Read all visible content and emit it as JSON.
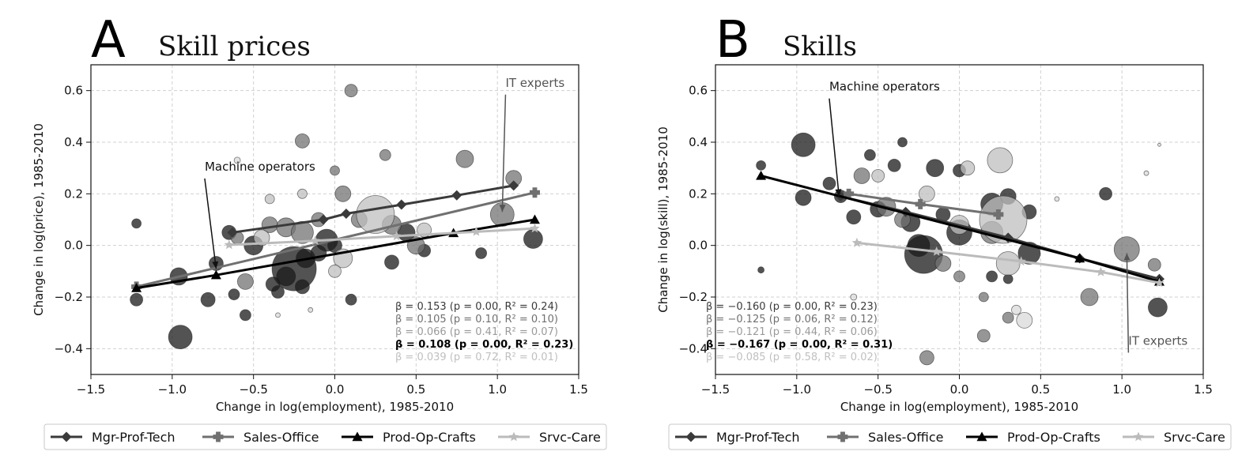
{
  "chart_data": [
    {
      "type": "scatter",
      "panel_letter": "A",
      "title": "Skill prices",
      "xlabel": "Change in log(employment), 1985-2010",
      "ylabel": "Change in log(price), 1985-2010",
      "xlim": [
        -1.5,
        1.5
      ],
      "ylim": [
        -0.5,
        0.7
      ],
      "xticks": [
        -1.5,
        -1.0,
        -0.5,
        0.0,
        0.5,
        1.0,
        1.5
      ],
      "xtick_labels": [
        "−1.5",
        "−1.0",
        "−0.5",
        "0.0",
        "0.5",
        "1.0",
        "1.5"
      ],
      "yticks": [
        -0.4,
        -0.2,
        0.0,
        0.2,
        0.4,
        0.6
      ],
      "ytick_labels": [
        "−0.4",
        "−0.2",
        "0.0",
        "0.2",
        "0.4",
        "0.6"
      ],
      "grid": true,
      "annotations": [
        {
          "text": "IT experts",
          "color": "#555555",
          "text_x": 1.05,
          "text_y": 0.615,
          "arrow_to": [
            1.03,
            0.13
          ]
        },
        {
          "text": "Machine operators",
          "color": "#111111",
          "text_x": -0.8,
          "text_y": 0.29,
          "arrow_to": [
            -0.73,
            -0.09
          ]
        }
      ],
      "series": [
        {
          "name": "Mgr-Prof-Tech",
          "color": "#3a3a3a",
          "marker": "diamond",
          "x": [
            -0.63,
            -0.07,
            0.07,
            0.41,
            0.75,
            1.1
          ],
          "y": [
            0.05,
            0.1,
            0.123,
            0.158,
            0.194,
            0.232
          ]
        },
        {
          "name": "Sales-Office",
          "color": "#707070",
          "marker": "plus",
          "x": [
            -1.22,
            1.23
          ],
          "y": [
            -0.16,
            0.205
          ]
        },
        {
          "name": "Prod-Op-Crafts",
          "color": "#000000",
          "marker": "triangle",
          "x": [
            -1.22,
            -0.73,
            0.73,
            1.23
          ],
          "y": [
            -0.165,
            -0.115,
            0.048,
            0.1
          ]
        },
        {
          "name": "Srvc-Care",
          "color": "#bbbbbb",
          "marker": "star",
          "x": [
            -0.65,
            -0.12,
            0.38,
            0.87,
            1.23
          ],
          "y": [
            0.002,
            0.018,
            0.036,
            0.053,
            0.066
          ]
        }
      ],
      "points": [
        {
          "x": -1.22,
          "y": 0.085,
          "s": 6,
          "c": 0.1
        },
        {
          "x": -1.22,
          "y": -0.21,
          "s": 8,
          "c": 0.1
        },
        {
          "x": -0.96,
          "y": -0.12,
          "s": 11,
          "c": 0.1
        },
        {
          "x": -0.95,
          "y": -0.355,
          "s": 15,
          "c": 0.1
        },
        {
          "x": -0.78,
          "y": -0.21,
          "s": 9,
          "c": 0.1
        },
        {
          "x": -0.73,
          "y": -0.07,
          "s": 9,
          "c": 0.1
        },
        {
          "x": -0.65,
          "y": 0.05,
          "s": 9,
          "c": 0.1
        },
        {
          "x": -0.62,
          "y": -0.19,
          "s": 7,
          "c": 0.1
        },
        {
          "x": -0.55,
          "y": -0.27,
          "s": 7,
          "c": 0.1
        },
        {
          "x": -0.5,
          "y": 0.0,
          "s": 12,
          "c": 0.1
        },
        {
          "x": -0.38,
          "y": -0.15,
          "s": 9,
          "c": 0.1
        },
        {
          "x": -0.35,
          "y": -0.18,
          "s": 8,
          "c": 0.1
        },
        {
          "x": -0.3,
          "y": -0.12,
          "s": 12,
          "c": 0.1
        },
        {
          "x": -0.25,
          "y": -0.09,
          "s": 28,
          "c": 0.1
        },
        {
          "x": -0.2,
          "y": -0.16,
          "s": 9,
          "c": 0.1
        },
        {
          "x": -0.18,
          "y": -0.05,
          "s": 12,
          "c": 0.1
        },
        {
          "x": -0.1,
          "y": -0.03,
          "s": 10,
          "c": 0.1
        },
        {
          "x": -0.05,
          "y": 0.02,
          "s": 14,
          "c": 0.1
        },
        {
          "x": 0.0,
          "y": 0.0,
          "s": 9,
          "c": 0.1
        },
        {
          "x": 0.1,
          "y": -0.21,
          "s": 7,
          "c": 0.1
        },
        {
          "x": 0.35,
          "y": -0.065,
          "s": 9,
          "c": 0.1
        },
        {
          "x": 0.44,
          "y": 0.05,
          "s": 11,
          "c": 0.1
        },
        {
          "x": 0.55,
          "y": -0.02,
          "s": 8,
          "c": 0.1
        },
        {
          "x": 0.9,
          "y": -0.03,
          "s": 7,
          "c": 0.1
        },
        {
          "x": 1.22,
          "y": 0.025,
          "s": 12,
          "c": 0.1
        },
        {
          "x": -0.6,
          "y": 0.03,
          "s": 8,
          "c": 0.45
        },
        {
          "x": -0.4,
          "y": 0.08,
          "s": 10,
          "c": 0.45
        },
        {
          "x": -0.3,
          "y": 0.07,
          "s": 12,
          "c": 0.45
        },
        {
          "x": -0.2,
          "y": 0.05,
          "s": 14,
          "c": 0.45
        },
        {
          "x": 0.05,
          "y": 0.2,
          "s": 10,
          "c": 0.45
        },
        {
          "x": 0.1,
          "y": 0.6,
          "s": 8,
          "c": 0.45
        },
        {
          "x": -0.2,
          "y": 0.405,
          "s": 9,
          "c": 0.45
        },
        {
          "x": 0.8,
          "y": 0.335,
          "s": 11,
          "c": 0.45
        },
        {
          "x": 1.1,
          "y": 0.26,
          "s": 10,
          "c": 0.45
        },
        {
          "x": 1.03,
          "y": 0.12,
          "s": 15,
          "c": 0.45
        },
        {
          "x": 0.31,
          "y": 0.35,
          "s": 7,
          "c": 0.45
        },
        {
          "x": -0.55,
          "y": -0.14,
          "s": 10,
          "c": 0.45
        },
        {
          "x": 0.0,
          "y": 0.29,
          "s": 6,
          "c": 0.45
        },
        {
          "x": 0.5,
          "y": 0.0,
          "s": 11,
          "c": 0.45
        },
        {
          "x": 0.35,
          "y": 0.08,
          "s": 12,
          "c": 0.45
        },
        {
          "x": 0.15,
          "y": 0.1,
          "s": 10,
          "c": 0.45
        },
        {
          "x": -0.1,
          "y": 0.1,
          "s": 9,
          "c": 0.45
        },
        {
          "x": 0.25,
          "y": 0.12,
          "s": 24,
          "c": 0.75
        },
        {
          "x": 0.05,
          "y": -0.05,
          "s": 12,
          "c": 0.75
        },
        {
          "x": -0.45,
          "y": 0.03,
          "s": 10,
          "c": 0.75
        },
        {
          "x": -0.2,
          "y": 0.2,
          "s": 6,
          "c": 0.75
        },
        {
          "x": 0.0,
          "y": -0.1,
          "s": 8,
          "c": 0.75
        },
        {
          "x": 0.55,
          "y": 0.06,
          "s": 9,
          "c": 0.75
        },
        {
          "x": -0.4,
          "y": 0.18,
          "s": 6,
          "c": 0.75
        },
        {
          "x": -0.6,
          "y": 0.33,
          "s": 4,
          "c": 0.85
        },
        {
          "x": -0.35,
          "y": -0.27,
          "s": 3,
          "c": 0.85
        },
        {
          "x": -0.15,
          "y": -0.25,
          "s": 3,
          "c": 0.85
        }
      ],
      "stats": [
        {
          "text": "β = 0.153 (p = 0.00, R² = 0.24)",
          "color": "#3a3a3a",
          "bold": false
        },
        {
          "text": "β = 0.105 (p = 0.10, R² = 0.10)",
          "color": "#707070",
          "bold": false
        },
        {
          "text": "β = 0.066 (p = 0.41, R² = 0.07)",
          "color": "#9a9a9a",
          "bold": false
        },
        {
          "text": "β = 0.108 (p = 0.00, R² = 0.23)",
          "color": "#000000",
          "bold": true
        },
        {
          "text": "β = 0.039 (p = 0.72, R² = 0.01)",
          "color": "#c0c0c0",
          "bold": false
        }
      ]
    },
    {
      "type": "scatter",
      "panel_letter": "B",
      "title": "Skills",
      "xlabel": "Change in log(employment), 1985-2010",
      "ylabel": "Change in log(skill), 1985-2010",
      "xlim": [
        -1.5,
        1.5
      ],
      "ylim": [
        -0.5,
        0.7
      ],
      "xticks": [
        -1.5,
        -1.0,
        -0.5,
        0.0,
        0.5,
        1.0,
        1.5
      ],
      "xtick_labels": [
        "−1.5",
        "−1.0",
        "−0.5",
        "0.0",
        "0.5",
        "1.0",
        "1.5"
      ],
      "yticks": [
        -0.4,
        -0.2,
        0.0,
        0.2,
        0.4,
        0.6
      ],
      "ytick_labels": [
        "−0.4",
        "−0.2",
        "0.0",
        "0.2",
        "0.4",
        "0.6"
      ],
      "grid": true,
      "annotations": [
        {
          "text": "Machine operators",
          "color": "#111111",
          "text_x": -0.8,
          "text_y": 0.6,
          "arrow_to": [
            -0.74,
            0.19
          ]
        },
        {
          "text": "IT experts",
          "color": "#555555",
          "text_x": 1.04,
          "text_y": -0.385,
          "arrow_to": [
            1.03,
            -0.03
          ]
        }
      ],
      "series": [
        {
          "name": "Mgr-Prof-Tech",
          "color": "#3a3a3a",
          "marker": "diamond",
          "x": [
            -0.73,
            -0.33,
            0.3,
            0.74,
            1.23
          ],
          "y": [
            0.19,
            0.13,
            0.03,
            -0.05,
            -0.13
          ]
        },
        {
          "name": "Sales-Office",
          "color": "#707070",
          "marker": "plus",
          "x": [
            -0.68,
            -0.24,
            0.24
          ],
          "y": [
            0.2,
            0.16,
            0.12
          ]
        },
        {
          "name": "Prod-Op-Crafts",
          "color": "#000000",
          "marker": "triangle",
          "x": [
            -1.22,
            0.74,
            1.23
          ],
          "y": [
            0.27,
            -0.05,
            -0.14
          ]
        },
        {
          "name": "Srvc-Care",
          "color": "#bbbbbb",
          "marker": "star",
          "x": [
            -0.63,
            -0.14,
            0.38,
            0.87,
            1.23
          ],
          "y": [
            0.01,
            -0.024,
            -0.062,
            -0.103,
            -0.145
          ]
        }
      ],
      "points": [
        {
          "x": -1.22,
          "y": 0.31,
          "s": 6,
          "c": 0.1
        },
        {
          "x": -1.22,
          "y": -0.095,
          "s": 4,
          "c": 0.1
        },
        {
          "x": -0.96,
          "y": 0.39,
          "s": 15,
          "c": 0.1
        },
        {
          "x": -0.96,
          "y": 0.185,
          "s": 10,
          "c": 0.1
        },
        {
          "x": -0.8,
          "y": 0.24,
          "s": 8,
          "c": 0.1
        },
        {
          "x": -0.73,
          "y": 0.19,
          "s": 8,
          "c": 0.1
        },
        {
          "x": -0.65,
          "y": 0.11,
          "s": 9,
          "c": 0.1
        },
        {
          "x": -0.55,
          "y": 0.35,
          "s": 7,
          "c": 0.1
        },
        {
          "x": -0.5,
          "y": 0.14,
          "s": 10,
          "c": 0.1
        },
        {
          "x": -0.4,
          "y": 0.31,
          "s": 8,
          "c": 0.1
        },
        {
          "x": -0.35,
          "y": 0.4,
          "s": 6,
          "c": 0.1
        },
        {
          "x": -0.3,
          "y": 0.09,
          "s": 12,
          "c": 0.1
        },
        {
          "x": -0.25,
          "y": 0.0,
          "s": 14,
          "c": 0.1
        },
        {
          "x": -0.22,
          "y": -0.035,
          "s": 24,
          "c": 0.1
        },
        {
          "x": -0.15,
          "y": 0.3,
          "s": 11,
          "c": 0.1
        },
        {
          "x": -0.1,
          "y": 0.12,
          "s": 9,
          "c": 0.1
        },
        {
          "x": 0.0,
          "y": 0.05,
          "s": 16,
          "c": 0.1
        },
        {
          "x": 0.0,
          "y": 0.29,
          "s": 8,
          "c": 0.1
        },
        {
          "x": 0.2,
          "y": 0.16,
          "s": 14,
          "c": 0.1
        },
        {
          "x": 0.3,
          "y": 0.19,
          "s": 10,
          "c": 0.1
        },
        {
          "x": 0.2,
          "y": -0.12,
          "s": 7,
          "c": 0.1
        },
        {
          "x": 0.3,
          "y": -0.13,
          "s": 6,
          "c": 0.1
        },
        {
          "x": 0.43,
          "y": -0.03,
          "s": 14,
          "c": 0.1
        },
        {
          "x": 0.43,
          "y": 0.13,
          "s": 9,
          "c": 0.1
        },
        {
          "x": 0.9,
          "y": 0.2,
          "s": 8,
          "c": 0.1
        },
        {
          "x": 1.22,
          "y": -0.24,
          "s": 12,
          "c": 0.1
        },
        {
          "x": -0.6,
          "y": 0.27,
          "s": 10,
          "c": 0.45
        },
        {
          "x": -0.45,
          "y": 0.15,
          "s": 12,
          "c": 0.45
        },
        {
          "x": -0.35,
          "y": 0.1,
          "s": 10,
          "c": 0.45
        },
        {
          "x": -0.1,
          "y": -0.07,
          "s": 10,
          "c": 0.45
        },
        {
          "x": 0.2,
          "y": 0.05,
          "s": 14,
          "c": 0.45
        },
        {
          "x": 0.3,
          "y": -0.28,
          "s": 7,
          "c": 0.45
        },
        {
          "x": 0.8,
          "y": -0.2,
          "s": 11,
          "c": 0.45
        },
        {
          "x": 1.03,
          "y": -0.015,
          "s": 16,
          "c": 0.45
        },
        {
          "x": -0.2,
          "y": -0.435,
          "s": 9,
          "c": 0.45
        },
        {
          "x": 0.15,
          "y": -0.2,
          "s": 6,
          "c": 0.45
        },
        {
          "x": 0.0,
          "y": -0.12,
          "s": 7,
          "c": 0.45
        },
        {
          "x": 1.2,
          "y": -0.075,
          "s": 8,
          "c": 0.45
        },
        {
          "x": 0.15,
          "y": -0.35,
          "s": 8,
          "c": 0.45
        },
        {
          "x": 0.27,
          "y": 0.1,
          "s": 30,
          "c": 0.75
        },
        {
          "x": 0.25,
          "y": 0.33,
          "s": 16,
          "c": 0.75
        },
        {
          "x": 0.05,
          "y": 0.3,
          "s": 9,
          "c": 0.75
        },
        {
          "x": 0.3,
          "y": -0.07,
          "s": 15,
          "c": 0.75
        },
        {
          "x": -0.5,
          "y": 0.27,
          "s": 8,
          "c": 0.75
        },
        {
          "x": 0.0,
          "y": 0.08,
          "s": 12,
          "c": 0.75
        },
        {
          "x": -0.2,
          "y": 0.2,
          "s": 10,
          "c": 0.75
        },
        {
          "x": 0.4,
          "y": -0.29,
          "s": 10,
          "c": 0.85
        },
        {
          "x": 0.35,
          "y": -0.25,
          "s": 6,
          "c": 0.85
        },
        {
          "x": 0.6,
          "y": 0.18,
          "s": 3,
          "c": 0.85
        },
        {
          "x": 1.15,
          "y": 0.28,
          "s": 3,
          "c": 0.85
        },
        {
          "x": 1.23,
          "y": 0.39,
          "s": 2,
          "c": 0.85
        },
        {
          "x": -0.65,
          "y": -0.2,
          "s": 4,
          "c": 0.85
        }
      ],
      "stats": [
        {
          "text": "β = −0.160 (p = 0.00, R² = 0.23)",
          "color": "#3a3a3a",
          "bold": false
        },
        {
          "text": "β = −0.125 (p = 0.06, R² = 0.12)",
          "color": "#707070",
          "bold": false
        },
        {
          "text": "β = −0.121 (p = 0.44, R² = 0.06)",
          "color": "#9a9a9a",
          "bold": false
        },
        {
          "text": "β = −0.167 (p = 0.00, R² = 0.31)",
          "color": "#000000",
          "bold": true
        },
        {
          "text": "β = −0.085 (p = 0.58, R² = 0.02)",
          "color": "#c0c0c0",
          "bold": false
        }
      ]
    }
  ]
}
